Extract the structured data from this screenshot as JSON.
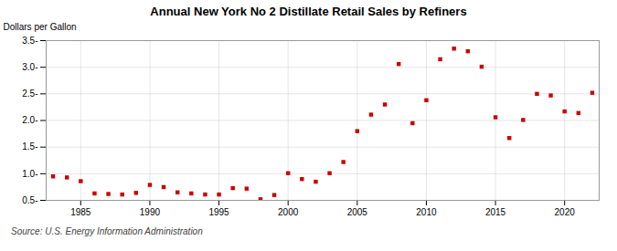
{
  "chart_data": {
    "type": "scatter",
    "title": "Annual New York No 2 Distillate Retail Sales by Refiners",
    "ylabel": "Dollars per Gallon",
    "source": "Source: U.S. Energy Information Administration",
    "x": [
      1983,
      1984,
      1985,
      1986,
      1987,
      1988,
      1989,
      1990,
      1991,
      1992,
      1993,
      1994,
      1995,
      1996,
      1997,
      1998,
      1999,
      2000,
      2001,
      2002,
      2003,
      2004,
      2005,
      2006,
      2007,
      2008,
      2009,
      2010,
      2011,
      2012,
      2013,
      2014,
      2015,
      2016,
      2017,
      2018,
      2019,
      2020,
      2021,
      2022
    ],
    "values": [
      0.95,
      0.93,
      0.86,
      0.63,
      0.62,
      0.61,
      0.64,
      0.79,
      0.75,
      0.65,
      0.63,
      0.61,
      0.61,
      0.73,
      0.72,
      0.52,
      0.6,
      1.01,
      0.9,
      0.85,
      1.01,
      1.22,
      1.8,
      2.11,
      2.3,
      3.06,
      1.95,
      2.38,
      3.15,
      3.35,
      3.3,
      3.01,
      2.06,
      1.67,
      2.01,
      2.5,
      2.47,
      2.17,
      2.14,
      2.52
    ],
    "color": "#cc0000",
    "marker": "square",
    "xlim": [
      1982.5,
      2022.5
    ],
    "xticks": [
      1985,
      1990,
      1995,
      2000,
      2005,
      2010,
      2015,
      2020
    ],
    "ylim": [
      0.5,
      3.5
    ],
    "yticks": [
      {
        "value": 0.5,
        "label": "0.5-"
      },
      {
        "value": 1.0,
        "label": "1.0-"
      },
      {
        "value": 1.5,
        "label": "1.5-"
      },
      {
        "value": 2.0,
        "label": "2.0-"
      },
      {
        "value": 2.5,
        "label": "2.5-"
      },
      {
        "value": 3.0,
        "label": "3.0-"
      },
      {
        "value": 3.5,
        "label": "3.5-"
      }
    ],
    "grid": true
  }
}
